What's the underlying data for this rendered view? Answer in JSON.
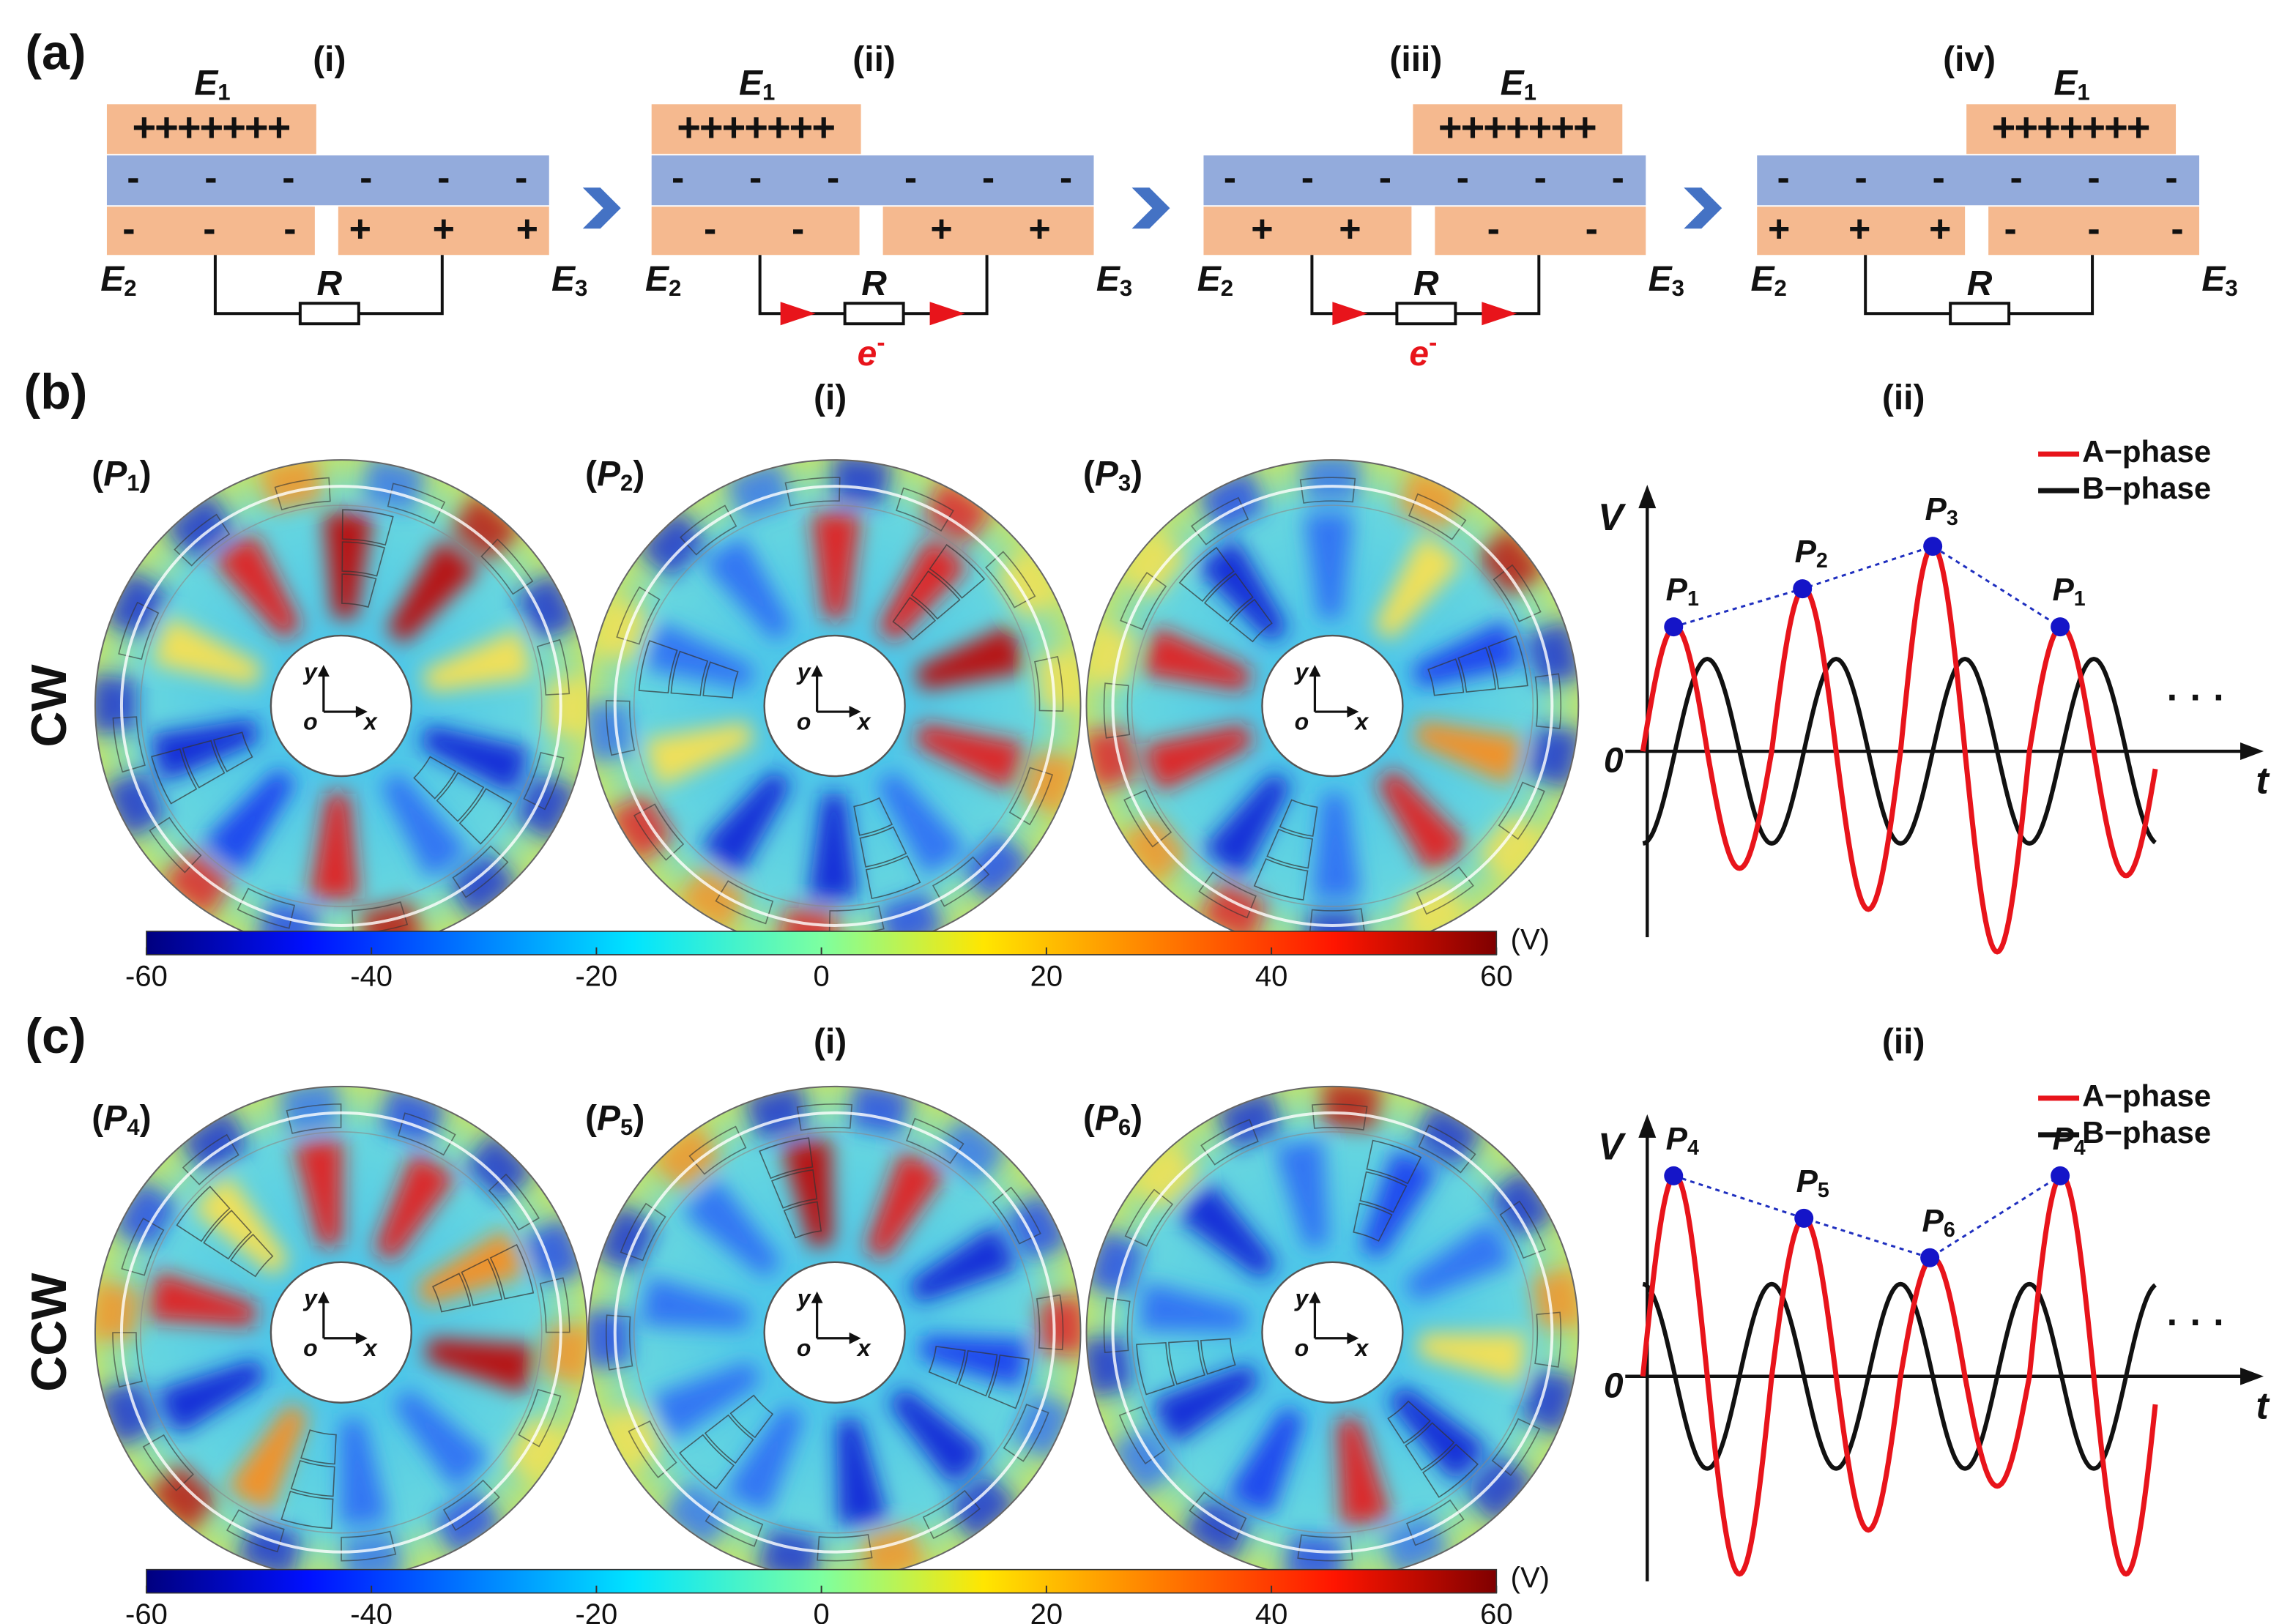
{
  "panel_a": {
    "label": "(a)",
    "electrodes": [
      {
        "symbol": "E",
        "sub": "1"
      },
      {
        "symbol": "E",
        "sub": "2"
      },
      {
        "symbol": "E",
        "sub": "3"
      }
    ],
    "resistor": "R",
    "electron": {
      "symbol": "e",
      "charge": "-"
    },
    "stages": [
      {
        "label": "(i)",
        "e1": "+++++++",
        "dielectric": [
          "-",
          "-",
          "-",
          "-",
          "-",
          "-"
        ],
        "e2": [
          "-",
          "-",
          "-"
        ],
        "e3": [
          "+",
          "+",
          "+"
        ],
        "current": false
      },
      {
        "label": "(ii)",
        "e1": "+++++++",
        "dielectric": [
          "-",
          "-",
          "-",
          "-",
          "-",
          "-"
        ],
        "e2": [
          "-",
          "-"
        ],
        "e3": [
          "+",
          "+"
        ],
        "current": true
      },
      {
        "label": "(iii)",
        "e1": "+++++++",
        "dielectric": [
          "-",
          "-",
          "-",
          "-",
          "-",
          "-"
        ],
        "e2": [
          "+",
          "+"
        ],
        "e3": [
          "-",
          "-"
        ],
        "current": true
      },
      {
        "label": "(iv)",
        "e1": "+++++++",
        "dielectric": [
          "-",
          "-",
          "-",
          "-",
          "-",
          "-"
        ],
        "e2": [
          "+",
          "+",
          "+"
        ],
        "e3": [
          "-",
          "-",
          "-"
        ],
        "current": false
      }
    ]
  },
  "panels": [
    {
      "label": "(b)",
      "direction": "CW",
      "maps_label": "(i)",
      "maps": [
        {
          "prefix": "(",
          "symbol": "P",
          "sub": "1",
          "suffix": ")"
        },
        {
          "prefix": "(",
          "symbol": "P",
          "sub": "2",
          "suffix": ")"
        },
        {
          "prefix": "(",
          "symbol": "P",
          "sub": "3",
          "suffix": ")"
        }
      ],
      "axes": {
        "y": "y",
        "o": "o",
        "x": "x"
      },
      "colorbar": {
        "ticks": [
          -60,
          -40,
          -20,
          0,
          20,
          40,
          60
        ],
        "unit": "(V)"
      },
      "plot": {
        "label": "(ii)",
        "y_axis": "V",
        "x_axis": "t",
        "zero": "0",
        "ellipsis": "· · ·",
        "legend": [
          {
            "name": "A−phase",
            "color": "#e8141b"
          },
          {
            "name": "B−phase",
            "color": "#111111"
          }
        ],
        "points": [
          {
            "symbol": "P",
            "sub": "1"
          },
          {
            "symbol": "P",
            "sub": "2"
          },
          {
            "symbol": "P",
            "sub": "3"
          },
          {
            "symbol": "P",
            "sub": "1"
          }
        ]
      }
    },
    {
      "label": "(c)",
      "direction": "CCW",
      "maps_label": "(i)",
      "maps": [
        {
          "prefix": "(",
          "symbol": "P",
          "sub": "4",
          "suffix": ")"
        },
        {
          "prefix": "(",
          "symbol": "P",
          "sub": "5",
          "suffix": ")"
        },
        {
          "prefix": "(",
          "symbol": "P",
          "sub": "6",
          "suffix": ")"
        }
      ],
      "axes": {
        "y": "y",
        "o": "o",
        "x": "x"
      },
      "colorbar": {
        "ticks": [
          -60,
          -40,
          -20,
          0,
          20,
          40,
          60
        ],
        "unit": "(V)"
      },
      "plot": {
        "label": "(ii)",
        "y_axis": "V",
        "x_axis": "t",
        "zero": "0",
        "ellipsis": "· · ·",
        "legend": [
          {
            "name": "A−phase",
            "color": "#e8141b"
          },
          {
            "name": "B−phase",
            "color": "#111111"
          }
        ],
        "points": [
          {
            "symbol": "P",
            "sub": "4"
          },
          {
            "symbol": "P",
            "sub": "5"
          },
          {
            "symbol": "P",
            "sub": "6"
          },
          {
            "symbol": "P",
            "sub": "4"
          }
        ]
      }
    }
  ]
}
